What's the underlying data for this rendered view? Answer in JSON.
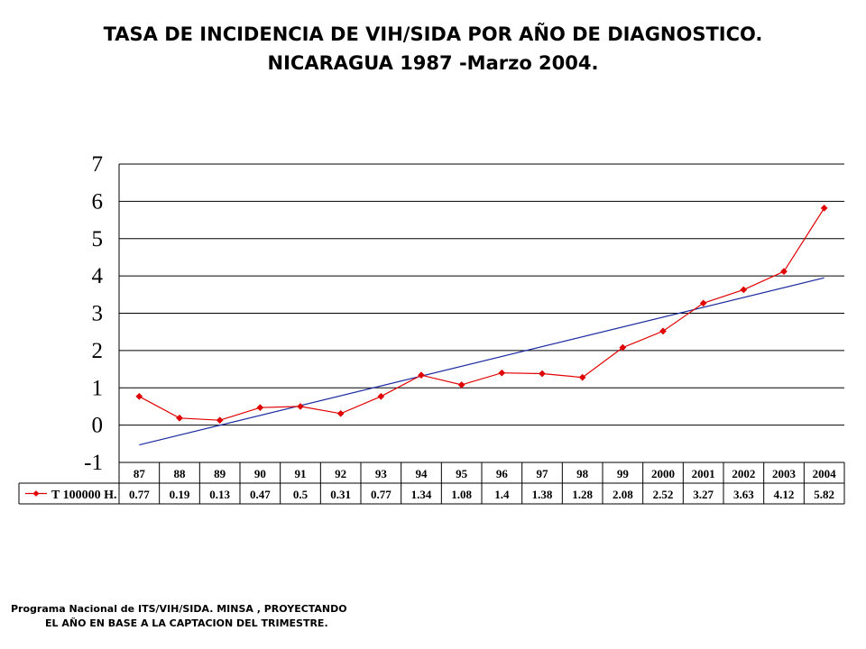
{
  "title": {
    "line1": "TASA DE INCIDENCIA DE VIH/SIDA POR AÑO DE DIAGNOSTICO.",
    "line2": "NICARAGUA 1987 -Marzo 2004."
  },
  "footer": {
    "line1": "Programa Nacional de ITS/VIH/SIDA. MINSA , PROYECTANDO",
    "line2": "EL AÑO EN BASE A LA CAPTACION DEL TRIMESTRE."
  },
  "colors": {
    "series": "#e00000",
    "trend": "#1a2aa0",
    "grid": "#000000"
  },
  "chart_data": {
    "type": "line",
    "title": "TASA DE INCIDENCIA DE VIH/SIDA POR AÑO DE DIAGNOSTICO. NICARAGUA 1987 -Marzo 2004.",
    "categories": [
      "87",
      "88",
      "89",
      "90",
      "91",
      "92",
      "93",
      "94",
      "95",
      "96",
      "97",
      "98",
      "99",
      "2000",
      "2001",
      "2002",
      "2003",
      "2004"
    ],
    "series": [
      {
        "name": "T 100000 H.",
        "values": [
          0.77,
          0.19,
          0.13,
          0.47,
          0.5,
          0.31,
          0.77,
          1.34,
          1.08,
          1.4,
          1.38,
          1.28,
          2.08,
          2.52,
          3.27,
          3.63,
          4.12,
          5.82
        ],
        "color": "#e00000",
        "marker": "diamond"
      }
    ],
    "trendline": {
      "type": "linear",
      "start": -0.53,
      "end": 3.95,
      "color": "#1a2aa0"
    },
    "ylim": [
      -1,
      7
    ],
    "yticks": [
      "-1",
      "0",
      "1",
      "2",
      "3",
      "4",
      "5",
      "6",
      "7"
    ],
    "grid": true,
    "legend": "data-table",
    "data_table": true
  }
}
